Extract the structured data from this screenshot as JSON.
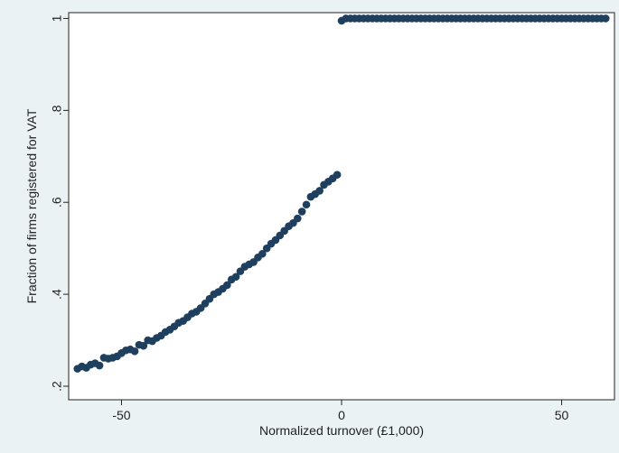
{
  "chart_data": {
    "type": "scatter",
    "title": "",
    "xlabel": "Normalized turnover (£1,000)",
    "ylabel": "Fraction of firms registered for VAT",
    "xlim": [
      -62,
      62
    ],
    "ylim": [
      0.2,
      1.0
    ],
    "x_ticks": [
      -50,
      0,
      50
    ],
    "x_tick_labels": [
      "-50",
      "0",
      "50"
    ],
    "y_ticks": [
      0.2,
      0.4,
      0.6,
      0.8,
      1.0
    ],
    "y_tick_labels": [
      ".2",
      ".4",
      ".6",
      ".8",
      "1"
    ],
    "grid": false,
    "marker_color": "#1f3f5f",
    "background_outer": "#eaf2f3",
    "background_plot": "#ffffff",
    "series": [
      {
        "x": [
          -60,
          -59,
          -58,
          -57,
          -56,
          -55,
          -54,
          -53,
          -52,
          -51,
          -50,
          -49,
          -48,
          -47,
          -46,
          -45,
          -44,
          -43,
          -42,
          -41,
          -40,
          -39,
          -38,
          -37,
          -36,
          -35,
          -34,
          -33,
          -32,
          -31,
          -30,
          -29,
          -28,
          -27,
          -26,
          -25,
          -24,
          -23,
          -22,
          -21,
          -20,
          -19,
          -18,
          -17,
          -16,
          -15,
          -14,
          -13,
          -12,
          -11,
          -10,
          -9,
          -8,
          -7,
          -6,
          -5,
          -4,
          -3,
          -2,
          -1,
          0,
          1,
          2,
          3,
          4,
          5,
          6,
          7,
          8,
          9,
          10,
          11,
          12,
          13,
          14,
          15,
          16,
          17,
          18,
          19,
          20,
          21,
          22,
          23,
          24,
          25,
          26,
          27,
          28,
          29,
          30,
          31,
          32,
          33,
          34,
          35,
          36,
          37,
          38,
          39,
          40,
          41,
          42,
          43,
          44,
          45,
          46,
          47,
          48,
          49,
          50,
          51,
          52,
          53,
          54,
          55,
          56,
          57,
          58,
          59,
          60
        ],
        "values": [
          0.238,
          0.243,
          0.24,
          0.247,
          0.25,
          0.245,
          0.262,
          0.26,
          0.262,
          0.265,
          0.272,
          0.278,
          0.28,
          0.276,
          0.29,
          0.288,
          0.3,
          0.298,
          0.305,
          0.31,
          0.318,
          0.323,
          0.33,
          0.338,
          0.342,
          0.35,
          0.358,
          0.362,
          0.37,
          0.38,
          0.39,
          0.4,
          0.405,
          0.412,
          0.42,
          0.432,
          0.438,
          0.45,
          0.46,
          0.465,
          0.47,
          0.48,
          0.488,
          0.5,
          0.51,
          0.518,
          0.528,
          0.538,
          0.548,
          0.555,
          0.565,
          0.58,
          0.595,
          0.612,
          0.618,
          0.625,
          0.638,
          0.645,
          0.652,
          0.66,
          0.995,
          1.0,
          1.0,
          1.0,
          1.0,
          1.0,
          1.0,
          1.0,
          1.0,
          1.0,
          1.0,
          1.0,
          1.0,
          1.0,
          1.0,
          1.0,
          1.0,
          1.0,
          1.0,
          1.0,
          1.0,
          1.0,
          1.0,
          1.0,
          1.0,
          1.0,
          1.0,
          1.0,
          1.0,
          1.0,
          1.0,
          1.0,
          1.0,
          1.0,
          1.0,
          1.0,
          1.0,
          1.0,
          1.0,
          1.0,
          1.0,
          1.0,
          1.0,
          1.0,
          1.0,
          1.0,
          1.0,
          1.0,
          1.0,
          1.0,
          1.0,
          1.0,
          1.0,
          1.0,
          1.0,
          1.0,
          1.0,
          1.0,
          1.0,
          1.0,
          1.0
        ]
      }
    ]
  }
}
